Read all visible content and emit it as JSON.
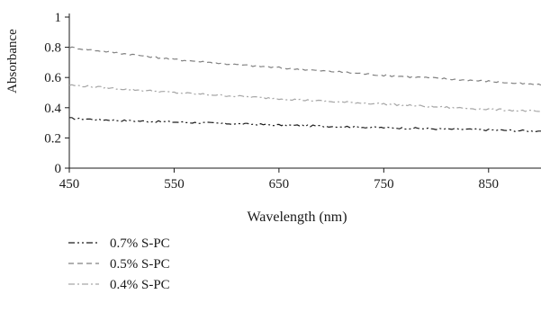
{
  "chart_data": {
    "type": "line",
    "title": "",
    "xlabel": "Wavelength (nm)",
    "ylabel": "Absorbance",
    "xlim": [
      450,
      900
    ],
    "ylim": [
      0,
      1
    ],
    "x_ticks": [
      450,
      550,
      650,
      750,
      850
    ],
    "y_ticks": [
      0,
      0.2,
      0.4,
      0.6,
      0.8,
      1
    ],
    "x_tick_labels": [
      "450",
      "550",
      "650",
      "750",
      "850"
    ],
    "y_tick_labels": [
      "0",
      "0.2",
      "0.4",
      "0.6",
      "0.8",
      "1"
    ],
    "grid": false,
    "legend_position": "bottom-left",
    "series": [
      {
        "name": "0.7% S-PC",
        "color": "#1a1a1a",
        "dash": "dash-dot-dot",
        "x": [
          450,
          500,
          550,
          600,
          650,
          700,
          750,
          800,
          850,
          900
        ],
        "y": [
          0.33,
          0.315,
          0.305,
          0.295,
          0.285,
          0.277,
          0.268,
          0.26,
          0.253,
          0.245
        ]
      },
      {
        "name": "0.5% S-PC",
        "color": "#808080",
        "dash": "dash",
        "x": [
          450,
          500,
          550,
          600,
          650,
          700,
          750,
          800,
          850,
          900
        ],
        "y": [
          0.8,
          0.76,
          0.72,
          0.69,
          0.665,
          0.64,
          0.615,
          0.595,
          0.575,
          0.55
        ]
      },
      {
        "name": "0.4% S-PC",
        "color": "#a6a6a6",
        "dash": "dash-dot",
        "x": [
          450,
          500,
          550,
          600,
          650,
          700,
          750,
          800,
          850,
          900
        ],
        "y": [
          0.55,
          0.525,
          0.5,
          0.48,
          0.46,
          0.44,
          0.425,
          0.405,
          0.39,
          0.375
        ]
      }
    ]
  }
}
